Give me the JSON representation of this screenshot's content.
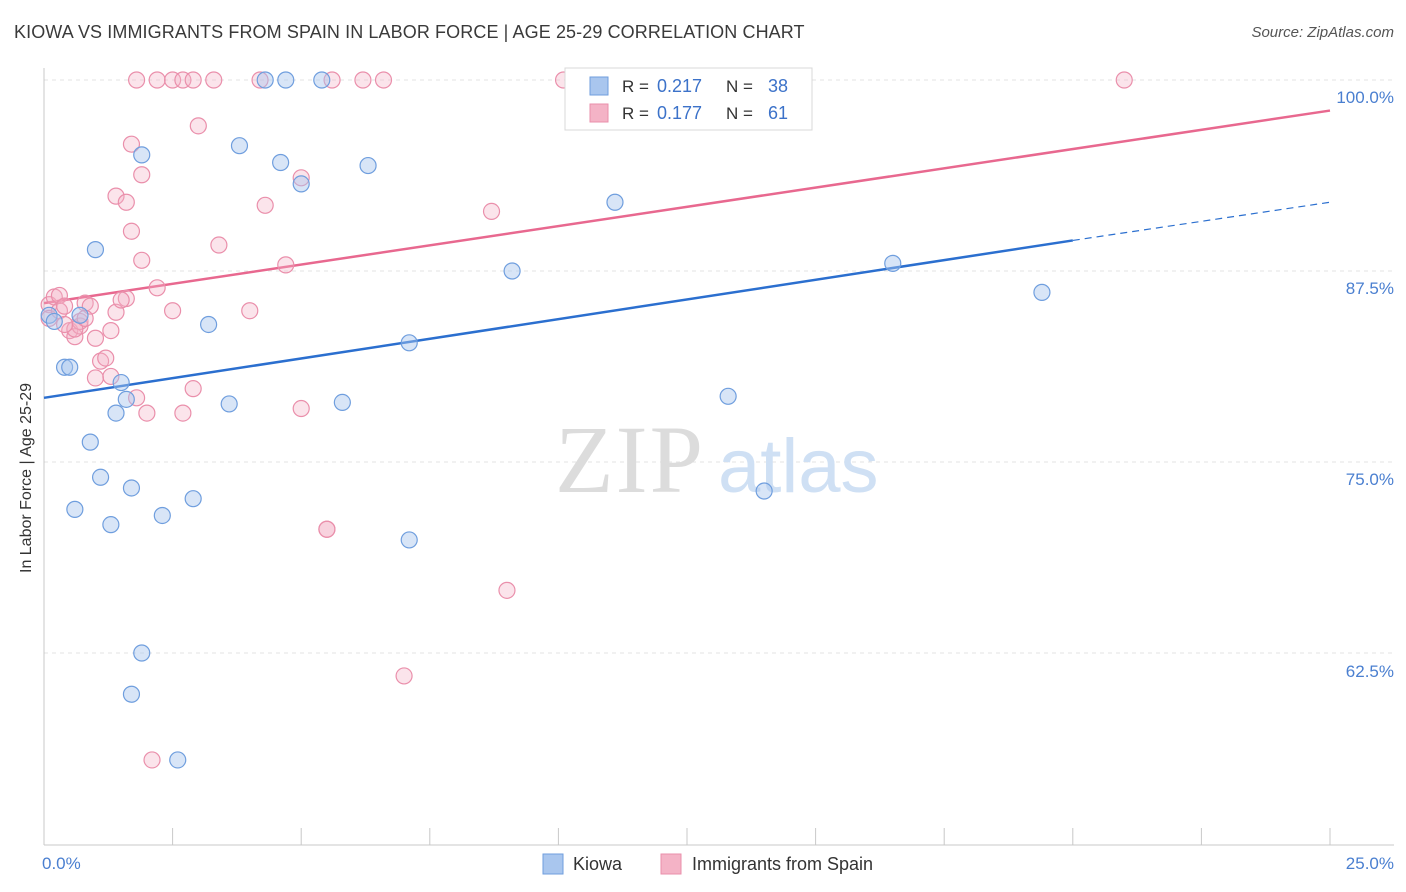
{
  "header": {
    "title": "KIOWA VS IMMIGRANTS FROM SPAIN IN LABOR FORCE | AGE 25-29 CORRELATION CHART",
    "source": "Source: ZipAtlas.com"
  },
  "watermark": {
    "zip": "ZIP",
    "atlas": "atlas"
  },
  "chart_data": {
    "type": "scatter",
    "title": "KIOWA VS IMMIGRANTS FROM SPAIN IN LABOR FORCE | AGE 25-29 CORRELATION CHART",
    "ylabel": "In Labor Force | Age 25-29",
    "xlabel": "",
    "xlim": [
      0,
      25
    ],
    "ylim": [
      50,
      100
    ],
    "x_tick_labels": [
      "0.0%",
      "25.0%"
    ],
    "y_tick_labels": [
      "100.0%",
      "87.5%",
      "75.0%",
      "62.5%"
    ],
    "y_ticks": [
      100,
      87.5,
      75,
      62.5
    ],
    "grid": true,
    "legend_position": "top-center",
    "series": [
      {
        "name": "Kiowa",
        "color": "#a9c6ee",
        "line_color": "#2b6fcf",
        "R": "0.217",
        "N": "38",
        "trend": {
          "x0": 0,
          "y0": 79.2,
          "x1": 20,
          "y1": 89.5,
          "dashed_to_x": 25,
          "dashed_to_y": 92.0
        },
        "points": [
          [
            0.4,
            81.2
          ],
          [
            0.5,
            81.2
          ],
          [
            1.0,
            88.9
          ],
          [
            0.7,
            84.6
          ],
          [
            1.5,
            80.2
          ],
          [
            1.9,
            95.1
          ],
          [
            1.4,
            78.2
          ],
          [
            1.6,
            79.1
          ],
          [
            0.9,
            76.3
          ],
          [
            1.1,
            74.0
          ],
          [
            1.7,
            73.3
          ],
          [
            0.6,
            71.9
          ],
          [
            1.3,
            70.9
          ],
          [
            2.3,
            71.5
          ],
          [
            2.9,
            72.6
          ],
          [
            3.2,
            84.0
          ],
          [
            3.6,
            78.8
          ],
          [
            3.8,
            95.7
          ],
          [
            4.3,
            100.0
          ],
          [
            4.7,
            100.0
          ],
          [
            4.6,
            94.6
          ],
          [
            5.0,
            93.2
          ],
          [
            5.4,
            100.0
          ],
          [
            5.8,
            78.9
          ],
          [
            6.3,
            94.4
          ],
          [
            7.1,
            69.9
          ],
          [
            7.1,
            82.8
          ],
          [
            9.1,
            87.5
          ],
          [
            11.1,
            92.0
          ],
          [
            13.3,
            79.3
          ],
          [
            14.0,
            73.1
          ],
          [
            16.5,
            88.0
          ],
          [
            19.4,
            86.1
          ],
          [
            1.9,
            62.5
          ],
          [
            1.7,
            59.8
          ],
          [
            2.6,
            55.5
          ],
          [
            0.1,
            84.6
          ],
          [
            0.2,
            84.2
          ]
        ]
      },
      {
        "name": "Immigrants from Spain",
        "color": "#f4b3c6",
        "line_color": "#e8688f",
        "R": "0.177",
        "N": "61",
        "trend": {
          "x0": 0,
          "y0": 85.4,
          "x1": 25,
          "y1": 98.0
        },
        "points": [
          [
            0.1,
            85.3
          ],
          [
            0.1,
            84.4
          ],
          [
            0.2,
            85.8
          ],
          [
            0.3,
            84.9
          ],
          [
            0.3,
            85.9
          ],
          [
            0.4,
            85.2
          ],
          [
            0.5,
            83.6
          ],
          [
            0.6,
            83.2
          ],
          [
            0.7,
            83.9
          ],
          [
            0.7,
            84.2
          ],
          [
            0.8,
            85.4
          ],
          [
            0.9,
            85.2
          ],
          [
            1.0,
            83.1
          ],
          [
            1.1,
            81.6
          ],
          [
            1.2,
            81.8
          ],
          [
            1.3,
            83.6
          ],
          [
            1.4,
            84.8
          ],
          [
            1.6,
            85.7
          ],
          [
            1.0,
            80.5
          ],
          [
            1.3,
            80.6
          ],
          [
            1.4,
            92.4
          ],
          [
            1.6,
            92.0
          ],
          [
            1.7,
            90.1
          ],
          [
            1.7,
            95.8
          ],
          [
            1.9,
            88.2
          ],
          [
            1.9,
            93.8
          ],
          [
            1.8,
            79.2
          ],
          [
            2.0,
            78.2
          ],
          [
            2.2,
            86.4
          ],
          [
            2.5,
            84.9
          ],
          [
            2.7,
            78.2
          ],
          [
            2.9,
            79.8
          ],
          [
            3.0,
            97.0
          ],
          [
            3.4,
            89.2
          ],
          [
            4.0,
            84.9
          ],
          [
            4.3,
            91.8
          ],
          [
            4.7,
            87.9
          ],
          [
            5.0,
            93.6
          ],
          [
            5.0,
            78.5
          ],
          [
            5.5,
            70.6
          ],
          [
            5.5,
            70.6
          ],
          [
            8.7,
            91.4
          ],
          [
            9.0,
            66.6
          ],
          [
            7.0,
            61.0
          ],
          [
            2.1,
            55.5
          ],
          [
            1.8,
            100.0
          ],
          [
            2.2,
            100.0
          ],
          [
            2.5,
            100.0
          ],
          [
            2.7,
            100.0
          ],
          [
            3.3,
            100.0
          ],
          [
            4.2,
            100.0
          ],
          [
            5.6,
            100.0
          ],
          [
            6.2,
            100.0
          ],
          [
            6.6,
            100.0
          ],
          [
            10.1,
            100.0
          ],
          [
            21.0,
            100.0
          ],
          [
            0.6,
            83.7
          ],
          [
            0.8,
            84.4
          ],
          [
            1.5,
            85.6
          ],
          [
            2.9,
            100.0
          ],
          [
            0.4,
            84.0
          ]
        ]
      }
    ]
  },
  "legend_top": {
    "r_label": "R =",
    "n_label": "N =",
    "rows": [
      {
        "r": "0.217",
        "n": "38"
      },
      {
        "r": "0.177",
        "n": "61"
      }
    ]
  },
  "legend_bottom": [
    "Kiowa",
    "Immigrants from Spain"
  ]
}
